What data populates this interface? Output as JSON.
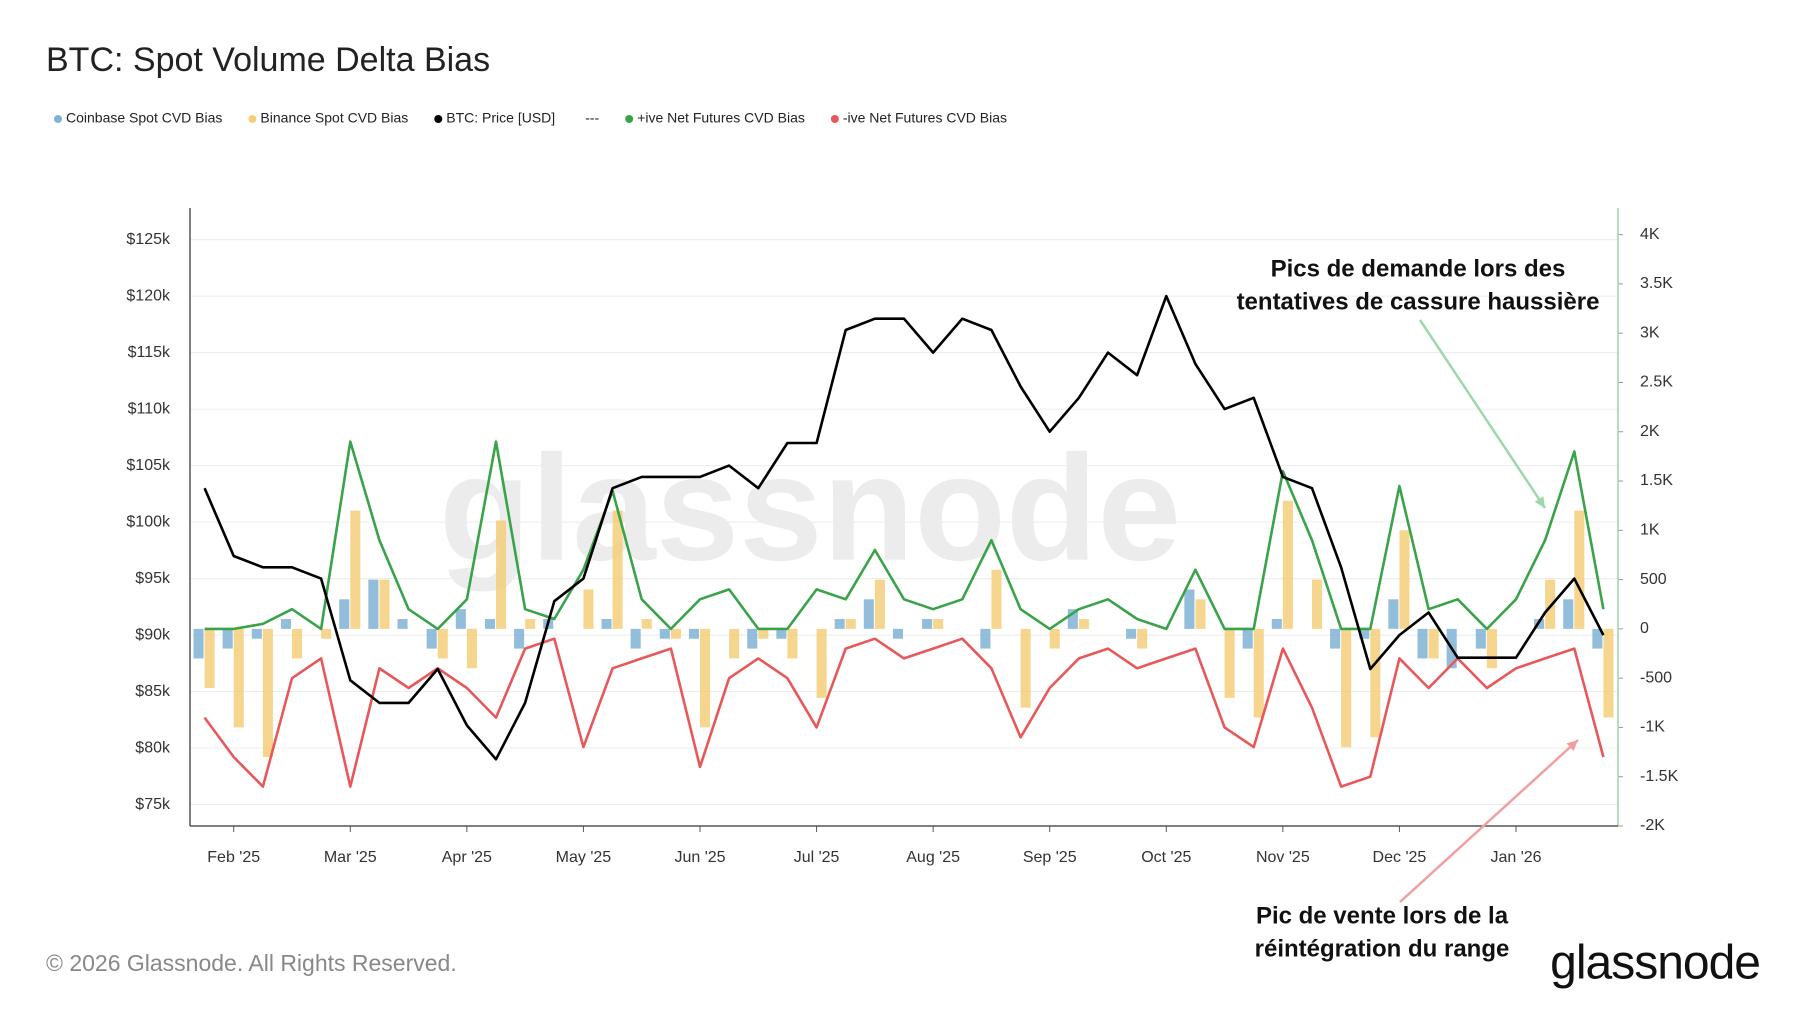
{
  "chart_data": {
    "type": "bar",
    "title": "BTC: Spot Volume Delta Bias",
    "legend_separator": "---",
    "watermark": "glassnode",
    "copyright": "© 2026 Glassnode. All Rights Reserved.",
    "logo": "glassnode",
    "annotations": [
      {
        "lines": [
          "Pics de demande lors des",
          "tentatives de cassure haussière"
        ],
        "color": "#9fd8a8"
      },
      {
        "lines": [
          "Pic de vente lors de la",
          "réintégration du range"
        ],
        "color": "#f0a0a0"
      }
    ],
    "categories": [
      null,
      "Feb '25",
      null,
      null,
      null,
      "Mar '25",
      null,
      null,
      null,
      "Apr '25",
      null,
      null,
      null,
      "May '25",
      null,
      null,
      null,
      "Jun '25",
      null,
      null,
      null,
      "Jul '25",
      null,
      null,
      null,
      "Aug '25",
      null,
      null,
      null,
      "Sep '25",
      null,
      null,
      null,
      "Oct '25",
      null,
      null,
      null,
      "Nov '25",
      null,
      null,
      null,
      "Dec '25",
      null,
      null,
      null,
      "Jan '26",
      null,
      null,
      null
    ],
    "ylim": [
      73100,
      127800
    ],
    "yticks": [
      {
        "value": 75000,
        "label": "$75k"
      },
      {
        "value": 80000,
        "label": "$80k"
      },
      {
        "value": 85000,
        "label": "$85k"
      },
      {
        "value": 90000,
        "label": "$90k"
      },
      {
        "value": 95000,
        "label": "$95k"
      },
      {
        "value": 100000,
        "label": "$100k"
      },
      {
        "value": 105000,
        "label": "$105k"
      },
      {
        "value": 110000,
        "label": "$110k"
      },
      {
        "value": 115000,
        "label": "$115k"
      },
      {
        "value": 120000,
        "label": "$120k"
      },
      {
        "value": 125000,
        "label": "$125k"
      }
    ],
    "y2lim": [
      -2000,
      4270
    ],
    "y2ticks": [
      {
        "value": -2000,
        "label": "-2K"
      },
      {
        "value": -1500,
        "label": "-1.5K"
      },
      {
        "value": -1000,
        "label": "-1K"
      },
      -500,
      0,
      500,
      {
        "value": 1000,
        "label": "1K"
      },
      {
        "value": 1500,
        "label": "1.5K"
      },
      {
        "value": 2000,
        "label": "2K"
      },
      {
        "value": 2500,
        "label": "2.5K"
      },
      {
        "value": 3000,
        "label": "3K"
      },
      {
        "value": 3500,
        "label": "3.5K"
      },
      {
        "value": 4000,
        "label": "4K"
      }
    ],
    "grid": true,
    "series": [
      {
        "name": "Coinbase Spot CVD Bias",
        "type": "bar",
        "axis": "y2",
        "color": "#7fb3d5",
        "values": [
          -300,
          -200,
          -100,
          100,
          0,
          300,
          500,
          100,
          -200,
          200,
          100,
          -200,
          100,
          0,
          100,
          -200,
          -100,
          -100,
          0,
          -200,
          -100,
          0,
          100,
          300,
          -100,
          100,
          0,
          -200,
          0,
          0,
          200,
          0,
          -100,
          0,
          400,
          0,
          -200,
          100,
          0,
          -200,
          -100,
          300,
          -300,
          -400,
          -200,
          0,
          100,
          300,
          -200
        ]
      },
      {
        "name": "Binance Spot CVD Bias",
        "type": "bar",
        "axis": "y2",
        "color": "#f5cf7a",
        "values": [
          -600,
          -1000,
          -1300,
          -300,
          -100,
          1200,
          500,
          0,
          -300,
          -400,
          1100,
          100,
          0,
          400,
          1200,
          100,
          -100,
          -1000,
          -300,
          -100,
          -300,
          -700,
          100,
          500,
          0,
          100,
          0,
          600,
          -800,
          -200,
          100,
          0,
          -200,
          0,
          300,
          -700,
          -900,
          1300,
          500,
          -1200,
          -1100,
          1000,
          -300,
          0,
          -400,
          0,
          500,
          1200,
          -900
        ]
      },
      {
        "name": "BTC: Price [USD]",
        "type": "line",
        "color": "#000000",
        "values": [
          103000,
          97000,
          96000,
          96000,
          95000,
          86000,
          84000,
          84000,
          87000,
          82000,
          79000,
          84000,
          93000,
          95000,
          103000,
          104000,
          104000,
          104000,
          105000,
          103000,
          107000,
          107000,
          117000,
          118000,
          118000,
          115000,
          118000,
          117000,
          112000,
          108000,
          111000,
          115000,
          113000,
          120000,
          114000,
          110000,
          111000,
          104000,
          103000,
          96000,
          87000,
          90000,
          92000,
          88000,
          88000,
          88000,
          92000,
          95000,
          90000
        ]
      },
      {
        "name": "+ive Net Futures CVD Bias",
        "type": "line",
        "axis": "y2",
        "color": "#3aa34a",
        "values": [
          0,
          0,
          50,
          200,
          0,
          1900,
          900,
          200,
          0,
          300,
          1900,
          200,
          100,
          600,
          1400,
          300,
          0,
          300,
          400,
          0,
          0,
          400,
          300,
          800,
          300,
          200,
          300,
          900,
          200,
          0,
          200,
          300,
          100,
          0,
          600,
          0,
          0,
          1600,
          900,
          0,
          0,
          1450,
          200,
          300,
          0,
          300,
          900,
          1800,
          200
        ]
      },
      {
        "name": "-ive Net Futures CVD Bias",
        "type": "line",
        "axis": "y2",
        "color": "#e8585a",
        "values": [
          -900,
          -1300,
          -1600,
          -500,
          -300,
          -1600,
          -400,
          -600,
          -400,
          -600,
          -900,
          -200,
          -100,
          -1200,
          -400,
          -300,
          -200,
          -1400,
          -500,
          -300,
          -500,
          -1000,
          -200,
          -100,
          -300,
          -200,
          -100,
          -400,
          -1100,
          -600,
          -300,
          -200,
          -400,
          -300,
          -200,
          -1000,
          -1200,
          -200,
          -800,
          -1600,
          -1500,
          -300,
          -600,
          -300,
          -600,
          -400,
          -300,
          -200,
          -1300
        ]
      }
    ]
  }
}
